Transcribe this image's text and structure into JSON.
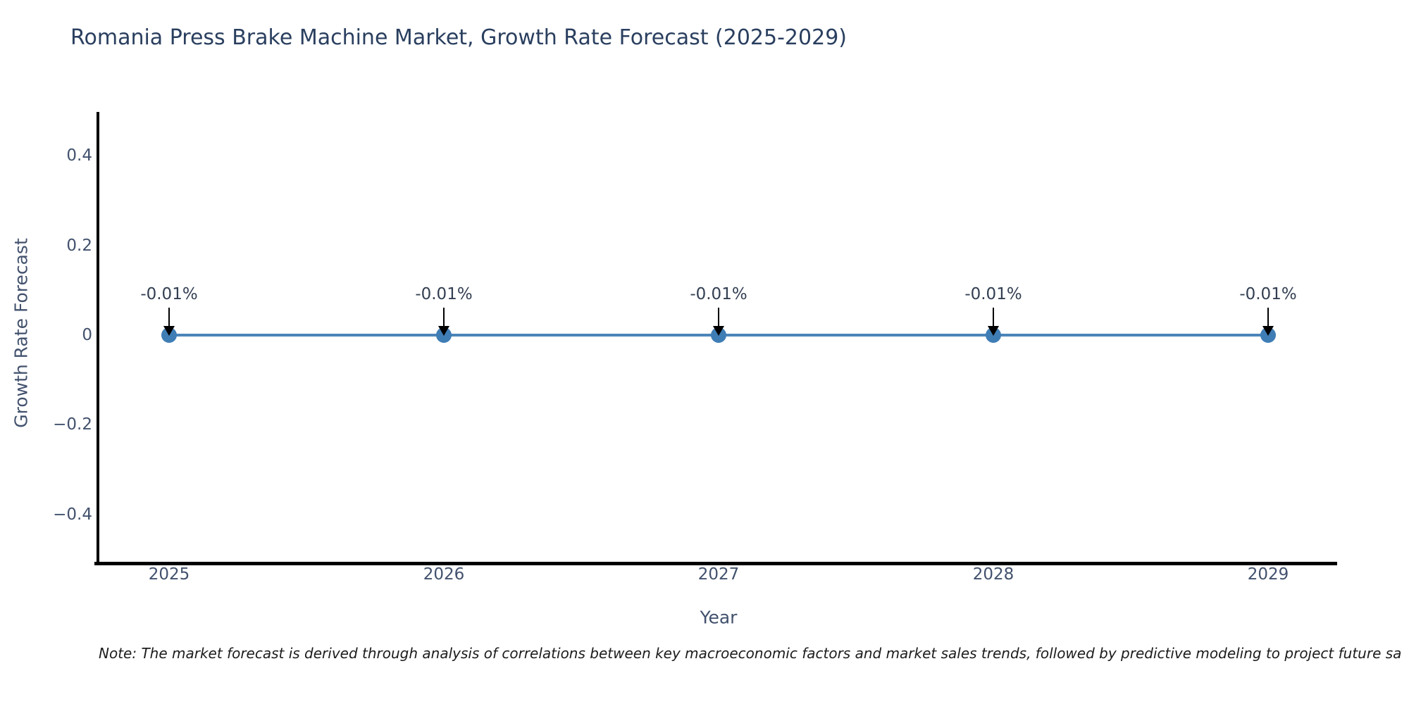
{
  "title": "Romania Press Brake Machine Market, Growth Rate Forecast (2025-2029)",
  "footnote": "Note: The market forecast is derived through analysis of correlations between key macroeconomic factors and market sales trends, followed by predictive modeling to project future sa",
  "chart_data": {
    "type": "line",
    "title": "Romania Press Brake Machine Market, Growth Rate Forecast (2025-2029)",
    "xlabel": "Year",
    "ylabel": "Growth Rate Forecast",
    "x": [
      2025,
      2026,
      2027,
      2028,
      2029
    ],
    "series": [
      {
        "name": "Growth Rate Forecast",
        "values_percent": [
          -0.01,
          -0.01,
          -0.01,
          -0.01,
          -0.01
        ],
        "point_labels": [
          "-0.01%",
          "-0.01%",
          "-0.01%",
          "-0.01%",
          "-0.01%"
        ]
      }
    ],
    "xticks": [
      "2025",
      "2026",
      "2027",
      "2028",
      "2029"
    ],
    "yticks": [
      {
        "label": "0.4",
        "value": 0.4
      },
      {
        "label": "0.2",
        "value": 0.2
      },
      {
        "label": "0",
        "value": 0
      },
      {
        "label": "−0.2",
        "value": -0.2
      },
      {
        "label": "−0.4",
        "value": -0.4
      }
    ],
    "ylim": [
      -0.5,
      0.5
    ],
    "grid": false,
    "legend": false,
    "annotation_arrows": "down",
    "colors": {
      "line": "#4c85b8",
      "marker": "#3f7db5",
      "axis": "#000000",
      "tick_text": "#42516d",
      "title_text": "#2a3f5f",
      "annotation_text": "#333f52",
      "arrow": "#000000"
    }
  }
}
